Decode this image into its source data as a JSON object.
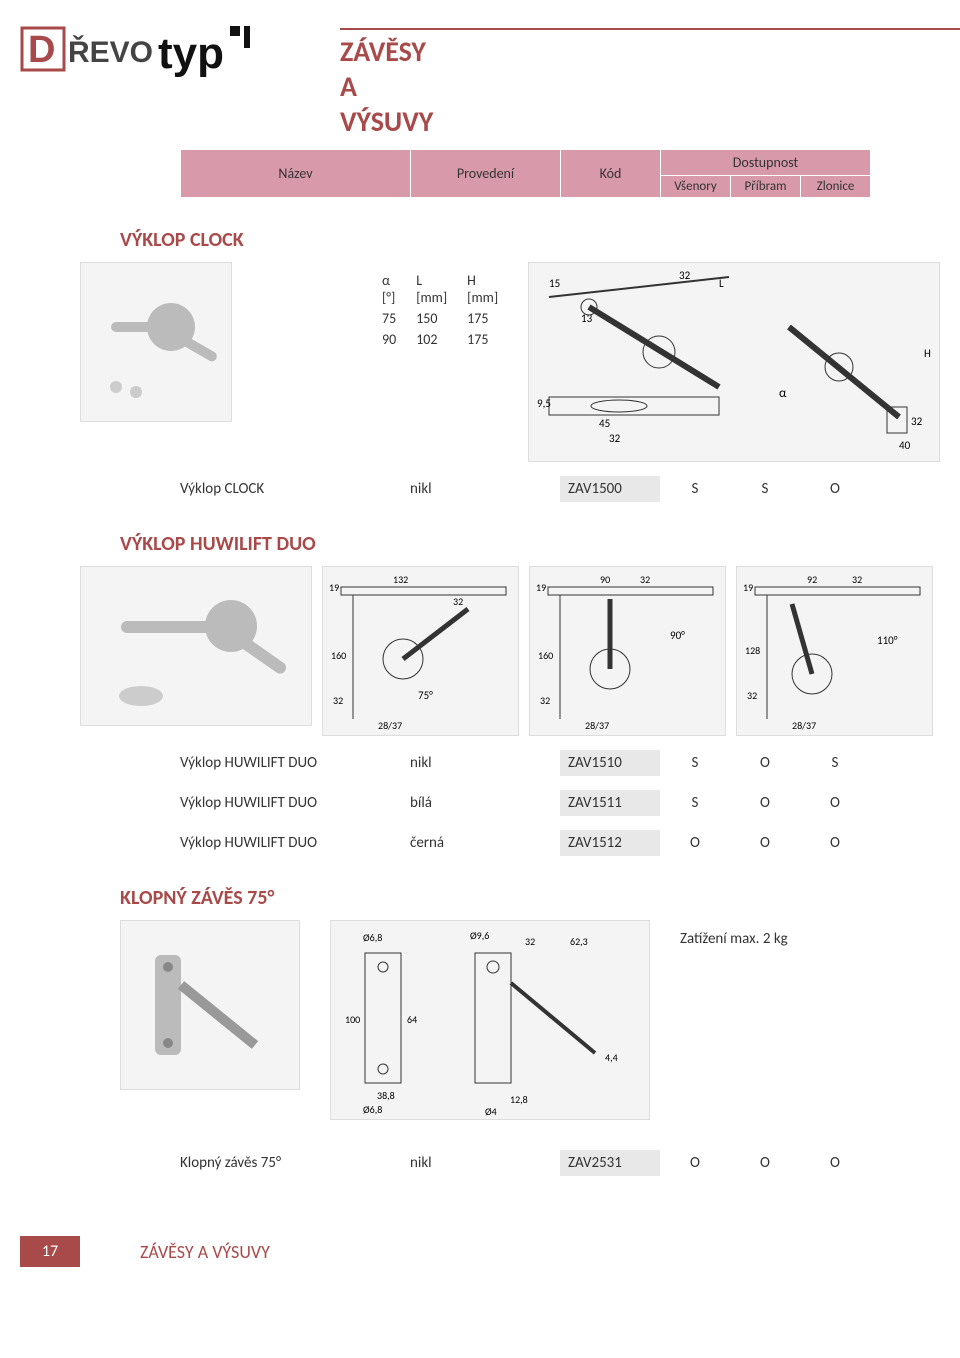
{
  "brand": "DŘEVOtyp",
  "page_title": "ZÁVĚSY A VÝSUVY",
  "header": {
    "name": "Název",
    "prov": "Provedení",
    "kod": "Kód",
    "dost": "Dostupnost",
    "loc1": "Všenory",
    "loc2": "Příbram",
    "loc3": "Zlonice",
    "col_widths": {
      "name": 230,
      "prov": 150,
      "kod": 100,
      "dost": 210,
      "loc": 70
    },
    "bg_color": "#d89aaa"
  },
  "section_clock": {
    "title": "VÝKLOP CLOCK",
    "spec": {
      "cols": [
        "α [°]",
        "L [mm]",
        "H [mm]"
      ],
      "rows": [
        [
          "75",
          "150",
          "175"
        ],
        [
          "90",
          "102",
          "175"
        ]
      ]
    },
    "row": {
      "name": "Výklop CLOCK",
      "prov": "nikl",
      "kod": "ZAV1500",
      "av": [
        "S",
        "S",
        "O"
      ]
    },
    "diagram_labels": [
      "15",
      "32",
      "L",
      "13",
      "9,5",
      "45",
      "32",
      "α",
      "H",
      "32",
      "40"
    ]
  },
  "section_huwi": {
    "title": "VÝKLOP HUWILIFT DUO",
    "rows": [
      {
        "name": "Výklop HUWILIFT DUO",
        "prov": "nikl",
        "kod": "ZAV1510",
        "av": [
          "S",
          "O",
          "S"
        ]
      },
      {
        "name": "Výklop HUWILIFT DUO",
        "prov": "bílá",
        "kod": "ZAV1511",
        "av": [
          "S",
          "O",
          "O"
        ]
      },
      {
        "name": "Výklop HUWILIFT DUO",
        "prov": "černá",
        "kod": "ZAV1512",
        "av": [
          "O",
          "O",
          "O"
        ]
      }
    ],
    "diagram_labels": [
      "19",
      "132",
      "32",
      "160",
      "32",
      "75°",
      "28/37",
      "19",
      "90",
      "32",
      "160",
      "32",
      "90°",
      "28/37",
      "19",
      "92",
      "32",
      "128",
      "32",
      "110°",
      "28/37"
    ]
  },
  "section_klop": {
    "title": "KLOPNÝ ZÁVĚS 75°",
    "note": "Zatížení max. 2 kg",
    "row": {
      "name": "Klopný závěs 75°",
      "prov": "nikl",
      "kod": "ZAV2531",
      "av": [
        "O",
        "O",
        "O"
      ]
    },
    "diagram_labels": [
      "Ø6,8",
      "38,8",
      "Ø9,6",
      "32",
      "62,3",
      "100",
      "64",
      "Ø6,8",
      "4,4",
      "12,8",
      "Ø4"
    ]
  },
  "footer": {
    "page": "17",
    "title": "ZÁVĚSY A VÝSUVY"
  },
  "colors": {
    "accent": "#a84a4a",
    "header_bg": "#d89aaa",
    "kod_bg": "#e8e8e8"
  }
}
